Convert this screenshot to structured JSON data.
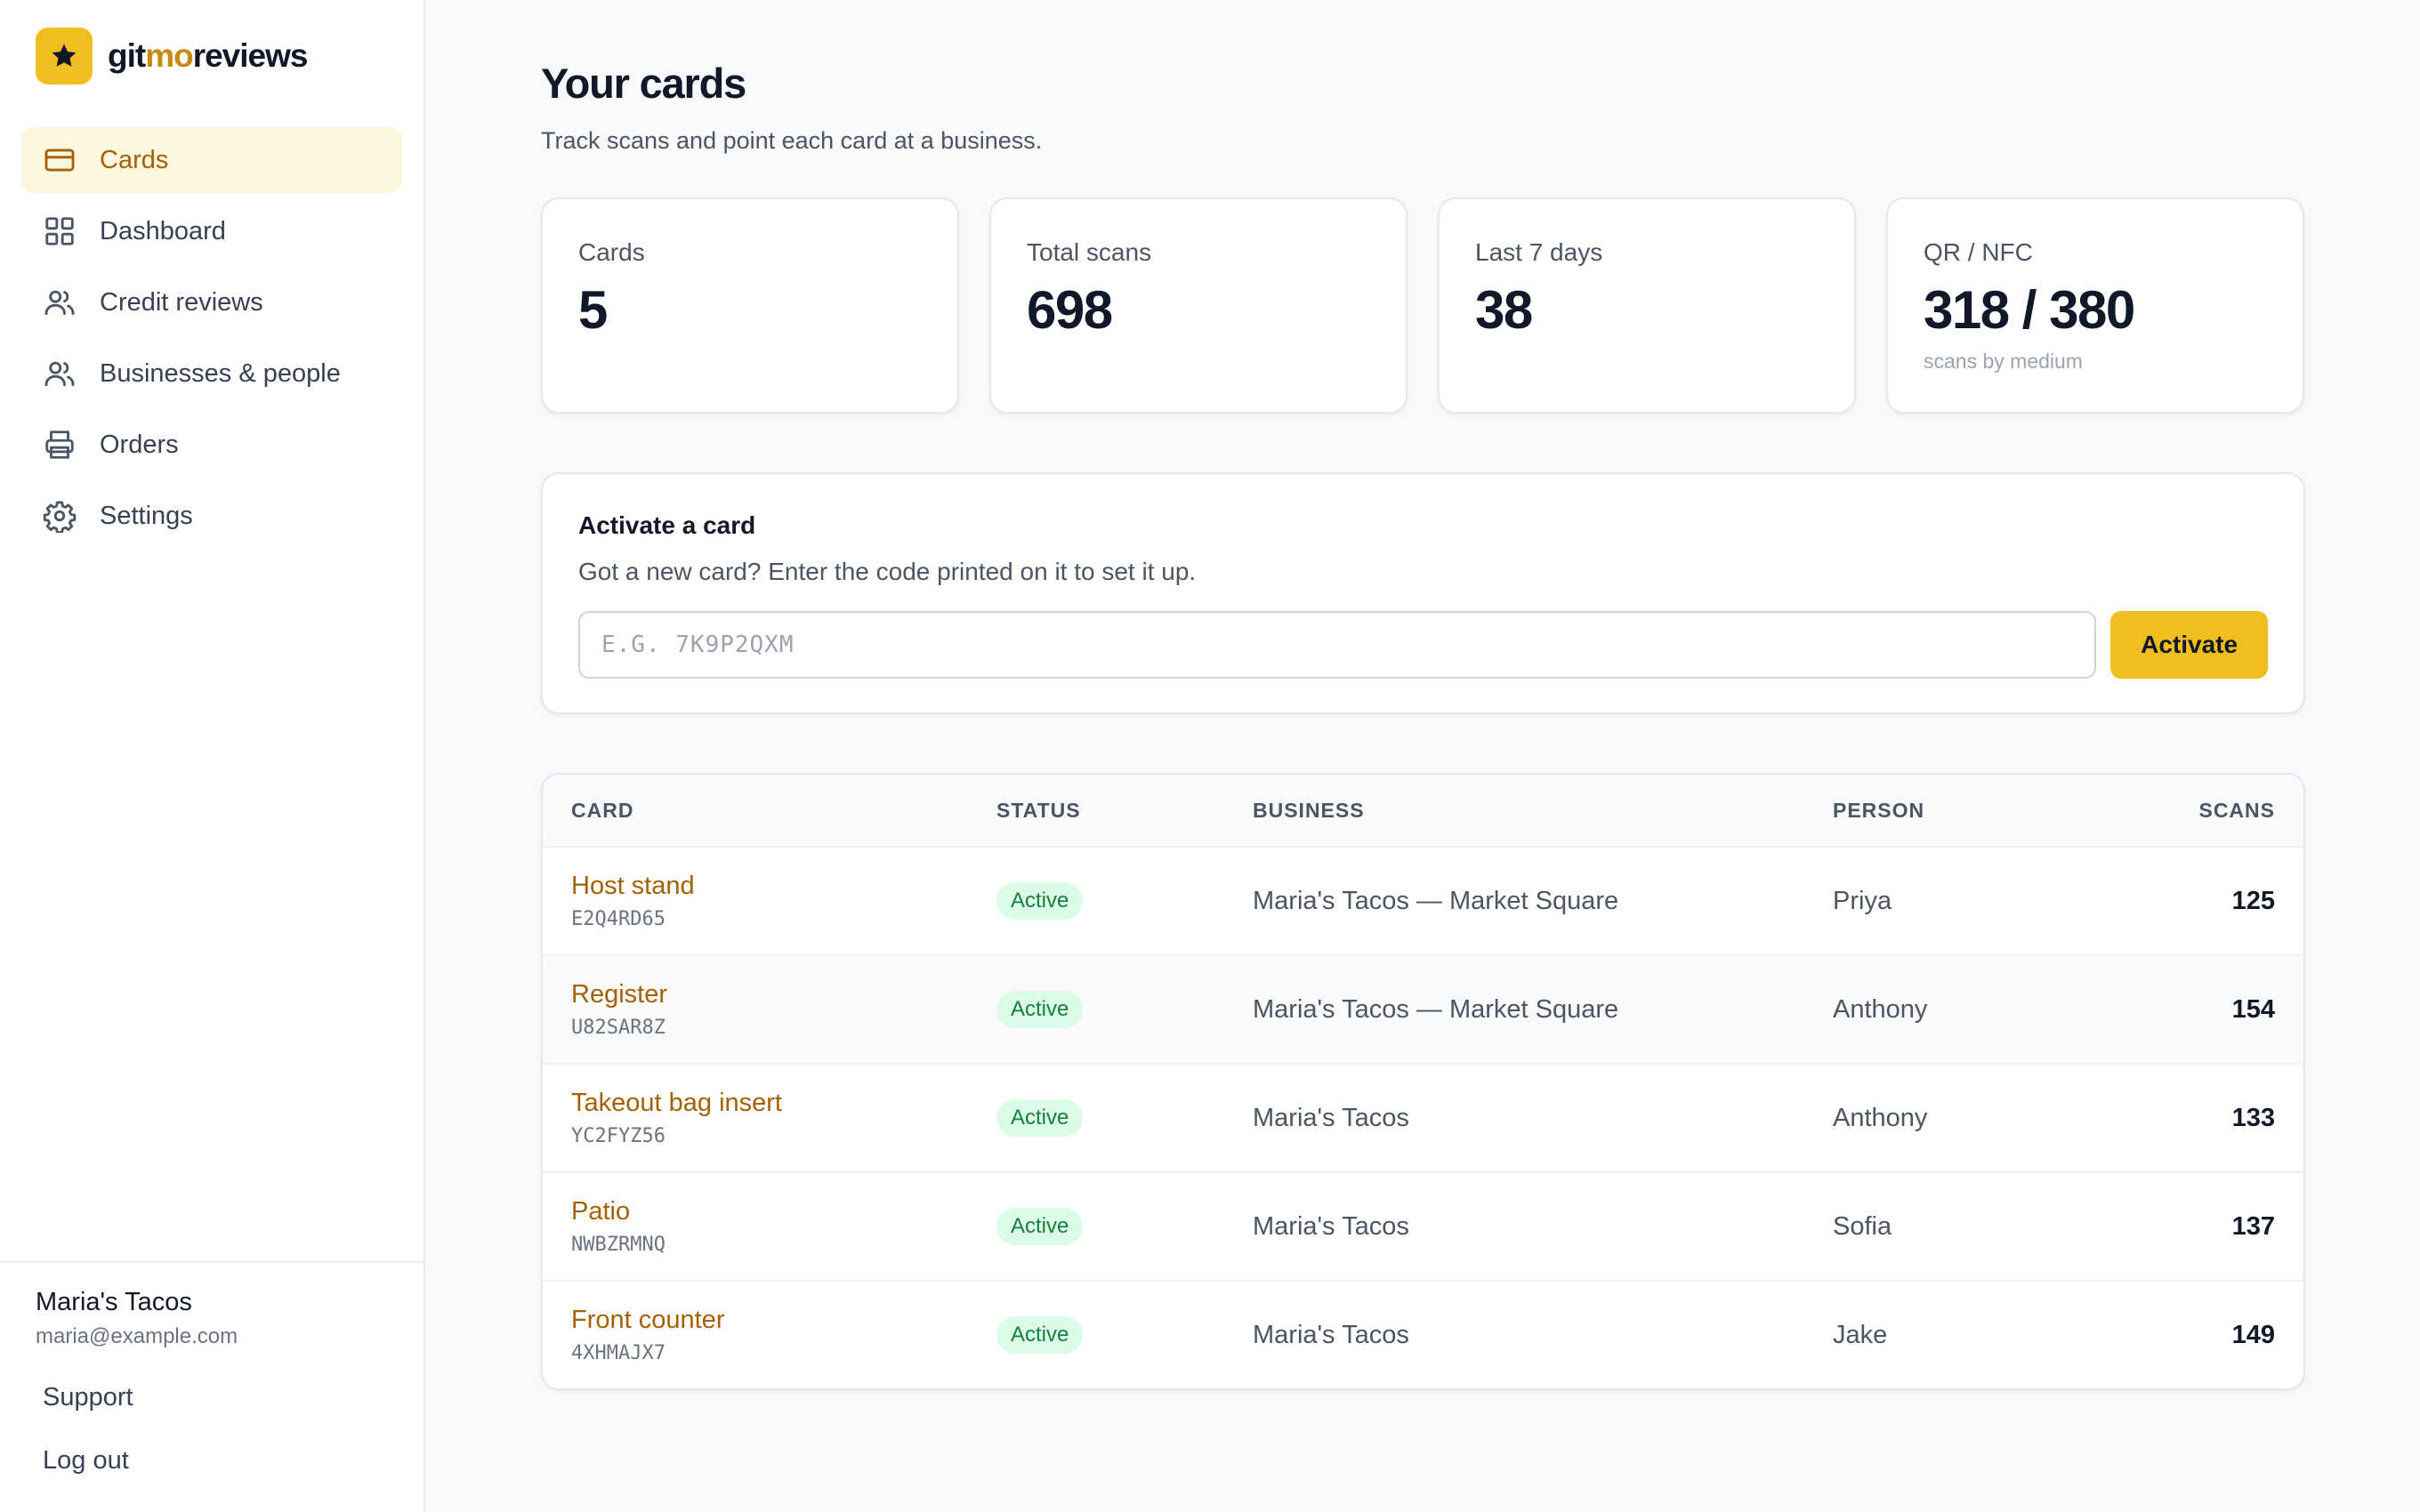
{
  "brand": {
    "part1": "git",
    "part2": "mo",
    "part3": "reviews",
    "accent_color": "#f2bd1f"
  },
  "nav": {
    "items": [
      {
        "label": "Cards",
        "icon": "credit-card-icon",
        "active": true
      },
      {
        "label": "Dashboard",
        "icon": "grid-icon",
        "active": false
      },
      {
        "label": "Credit reviews",
        "icon": "users-icon",
        "active": false
      },
      {
        "label": "Businesses & people",
        "icon": "users-icon",
        "active": false
      },
      {
        "label": "Orders",
        "icon": "printer-icon",
        "active": false
      },
      {
        "label": "Settings",
        "icon": "gear-icon",
        "active": false
      }
    ]
  },
  "account": {
    "name": "Maria's Tacos",
    "email": "maria@example.com",
    "support": "Support",
    "logout": "Log out"
  },
  "page": {
    "title": "Your cards",
    "subtitle": "Track scans and point each card at a business."
  },
  "stats": [
    {
      "label": "Cards",
      "value": "5",
      "note": ""
    },
    {
      "label": "Total scans",
      "value": "698",
      "note": ""
    },
    {
      "label": "Last 7 days",
      "value": "38",
      "note": ""
    },
    {
      "label": "QR / NFC",
      "value": "318 / 380",
      "note": "scans by medium"
    }
  ],
  "activate": {
    "title": "Activate a card",
    "description": "Got a new card? Enter the code printed on it to set it up.",
    "placeholder": "E.G. 7K9P2QXM",
    "value": "",
    "button": "Activate"
  },
  "table": {
    "headers": {
      "card": "CARD",
      "status": "STATUS",
      "business": "BUSINESS",
      "person": "PERSON",
      "scans": "SCANS"
    },
    "rows": [
      {
        "name": "Host stand",
        "code": "E2Q4RD65",
        "status": "Active",
        "business": "Maria's Tacos — Market Square",
        "person": "Priya",
        "scans": "125"
      },
      {
        "name": "Register",
        "code": "U82SAR8Z",
        "status": "Active",
        "business": "Maria's Tacos — Market Square",
        "person": "Anthony",
        "scans": "154"
      },
      {
        "name": "Takeout bag insert",
        "code": "YC2FYZ56",
        "status": "Active",
        "business": "Maria's Tacos",
        "person": "Anthony",
        "scans": "133"
      },
      {
        "name": "Patio",
        "code": "NWBZRMNQ",
        "status": "Active",
        "business": "Maria's Tacos",
        "person": "Sofia",
        "scans": "137"
      },
      {
        "name": "Front counter",
        "code": "4XHMAJX7",
        "status": "Active",
        "business": "Maria's Tacos",
        "person": "Jake",
        "scans": "149"
      }
    ]
  }
}
